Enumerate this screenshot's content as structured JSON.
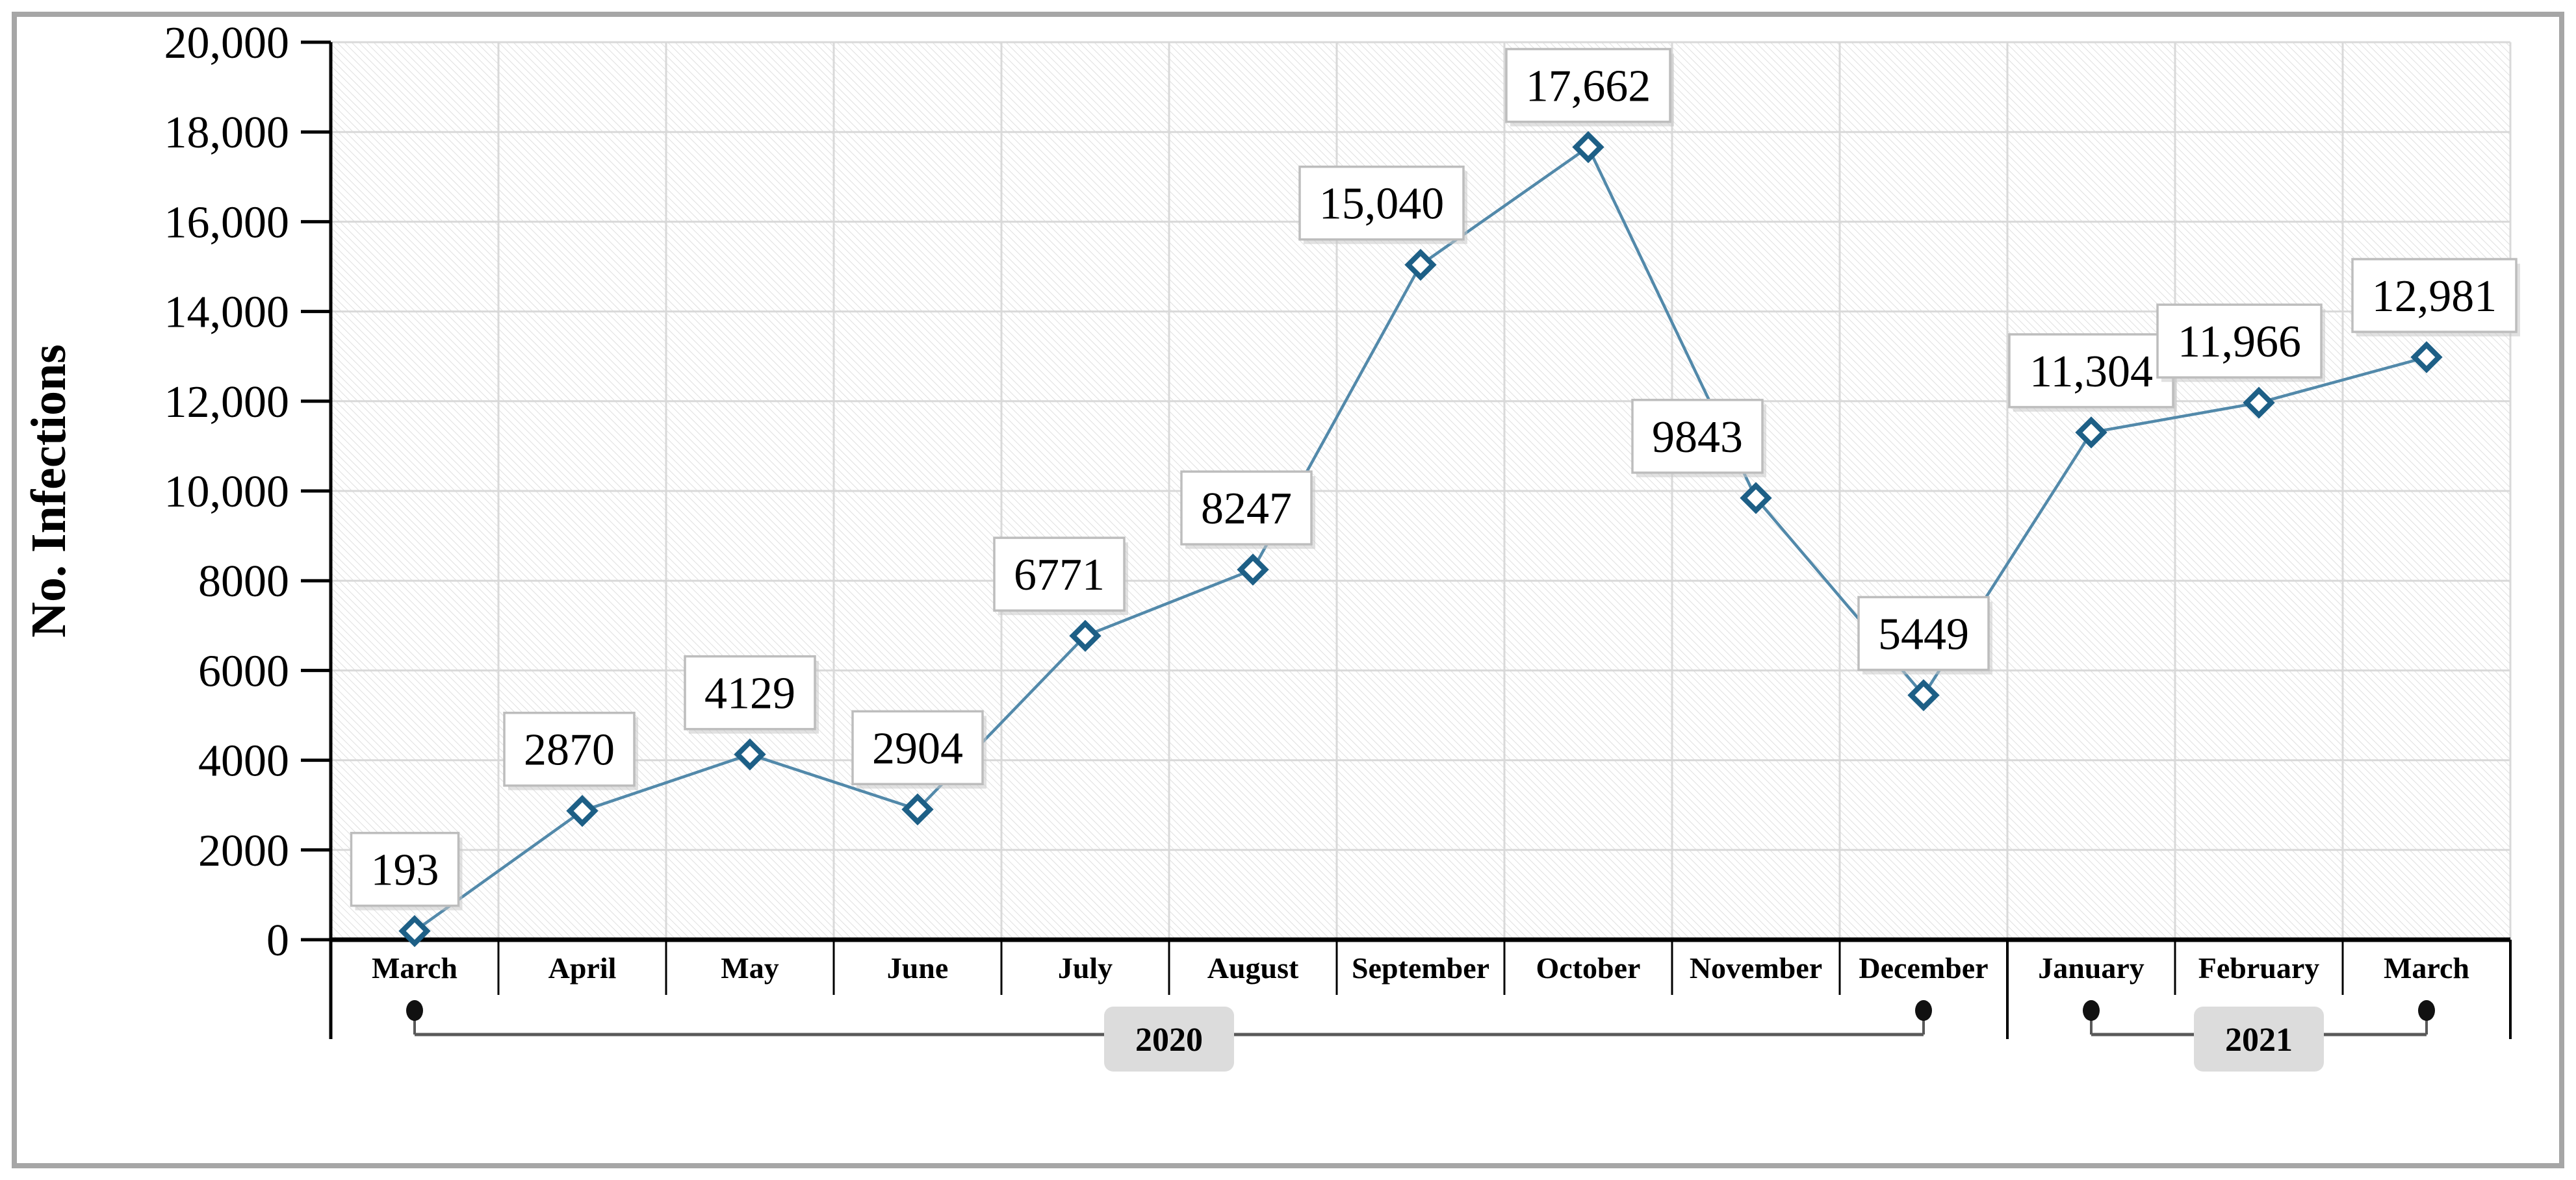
{
  "figure": {
    "frame_color": "#a6a6a6",
    "background": "#ffffff"
  },
  "chart_data": {
    "type": "line",
    "title": "",
    "ylabel": "No. Infections",
    "xlabel": "",
    "ylim": [
      0,
      20000
    ],
    "ytick_step": 2000,
    "ytick_labels": [
      "0",
      "2000",
      "4000",
      "6000",
      "8000",
      "10,000",
      "12,000",
      "14,000",
      "16,000",
      "18,000",
      "20,000"
    ],
    "categories": [
      "March",
      "April",
      "May",
      "June",
      "July",
      "August",
      "September",
      "October",
      "November",
      "December",
      "January",
      "February",
      "March"
    ],
    "values": [
      193,
      2870,
      4129,
      2904,
      6771,
      8247,
      15040,
      17662,
      9843,
      5449,
      11304,
      11966,
      12981
    ],
    "point_labels": [
      "193",
      "2870",
      "4129",
      "2904",
      "6771",
      "8247",
      "15,040",
      "17,662",
      "9843",
      "5449",
      "11,304",
      "11,966",
      "12,981"
    ],
    "year_groups": [
      {
        "label": "2020",
        "start_index": 0,
        "end_index": 9
      },
      {
        "label": "2021",
        "start_index": 10,
        "end_index": 12
      }
    ],
    "grid": true,
    "legend": false,
    "plot_background": "hatched",
    "marker": "open-diamond",
    "label_dx": [
      -15,
      -20,
      0,
      0,
      -40,
      -10,
      -60,
      0,
      -90,
      0,
      0,
      -30,
      12
    ],
    "colors": {
      "line": "#5289aa",
      "marker_stroke": "#1d5f86",
      "marker_fill": "#ffffff",
      "grid": "#d9d9d9",
      "hatch": "#dcdcdc",
      "axis": "#000000",
      "text": "#000000",
      "label_box_fill": "#ffffff",
      "label_box_border": "#bdbdbd",
      "label_box_shadow": "#c9c9c9",
      "year_box_fill": "#dcdcdc",
      "bracket_line": "#595959",
      "dot": "#111111"
    }
  }
}
